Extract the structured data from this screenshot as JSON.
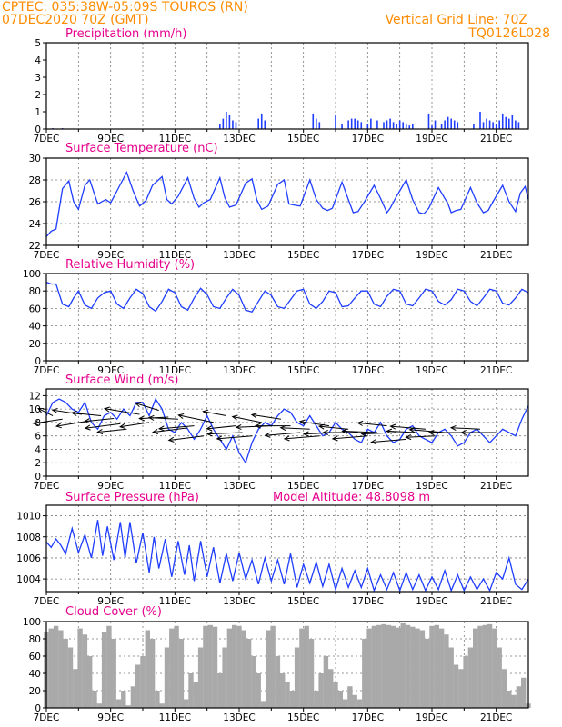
{
  "header": {
    "line1": "CPTEC:   035:38W-05:09S   TOUROS (RN)",
    "line2": "07DEC2020 70Z (GMT)",
    "grid_line": "Vertical Grid Line: 70Z",
    "code": "TQ0126L028"
  },
  "model_altitude": "Model Altitude: 48.8098 m",
  "colors": {
    "header": "#ff8c00",
    "title": "#e6008c",
    "series": "#1f3dff",
    "cloud": "#a9a9a9",
    "vectors": "#000000"
  },
  "chart_data": [
    {
      "id": "precip",
      "type": "bar",
      "title": "Precipitation (mm/h)",
      "ylim": [
        0,
        5
      ],
      "yticks": [
        0,
        1,
        2,
        3,
        4,
        5
      ],
      "xlim": [
        0,
        15
      ],
      "x_tick_labels": [
        "7DEC",
        "9DEC",
        "11DEC",
        "13DEC",
        "15DEC",
        "17DEC",
        "19DEC",
        "21DEC"
      ],
      "grid": "vertical dotted",
      "x": [
        0.2,
        0.5,
        5.4,
        5.5,
        5.6,
        5.7,
        5.8,
        5.9,
        6.6,
        6.7,
        6.8,
        8.3,
        8.4,
        8.5,
        9.0,
        9.2,
        9.4,
        9.5,
        9.6,
        9.7,
        9.8,
        10.0,
        10.1,
        10.3,
        10.5,
        10.6,
        10.7,
        10.8,
        10.9,
        11.0,
        11.1,
        11.2,
        11.3,
        11.4,
        11.9,
        12.0,
        12.1,
        12.3,
        12.4,
        12.5,
        12.6,
        12.7,
        12.8,
        13.3,
        13.5,
        13.6,
        13.7,
        13.8,
        13.9,
        14.0,
        14.1,
        14.2,
        14.3,
        14.4,
        14.5,
        14.6,
        14.7
      ],
      "values": [
        0.05,
        0.05,
        0.3,
        0.6,
        1.0,
        0.8,
        0.5,
        0.4,
        0.6,
        0.9,
        0.5,
        0.9,
        0.6,
        0.4,
        0.8,
        0.3,
        0.5,
        0.6,
        0.6,
        0.5,
        0.4,
        0.3,
        0.6,
        0.5,
        0.4,
        0.5,
        0.6,
        0.4,
        0.3,
        0.5,
        0.4,
        0.3,
        0.2,
        0.3,
        0.9,
        0.2,
        0.5,
        0.3,
        0.5,
        0.7,
        0.6,
        0.5,
        0.4,
        0.3,
        1.0,
        0.4,
        0.6,
        0.5,
        0.4,
        0.3,
        0.5,
        0.9,
        0.7,
        0.6,
        0.8,
        0.5,
        0.4
      ]
    },
    {
      "id": "temperature",
      "type": "line",
      "title": "Surface Temperature (nC)",
      "ylim": [
        22,
        30
      ],
      "yticks": [
        22,
        24,
        26,
        28,
        30
      ],
      "xlim": [
        0,
        15
      ],
      "x_tick_labels": [
        "7DEC",
        "9DEC",
        "11DEC",
        "13DEC",
        "15DEC",
        "17DEC",
        "19DEC",
        "21DEC"
      ],
      "grid": "dotted",
      "x": [
        0,
        0.15,
        0.3,
        0.5,
        0.7,
        0.85,
        1.0,
        1.2,
        1.35,
        1.6,
        1.85,
        2.0,
        2.2,
        2.5,
        2.7,
        2.9,
        3.1,
        3.3,
        3.6,
        3.75,
        3.9,
        4.1,
        4.4,
        4.6,
        4.75,
        4.9,
        5.1,
        5.4,
        5.55,
        5.7,
        5.9,
        6.2,
        6.4,
        6.55,
        6.7,
        6.9,
        7.2,
        7.4,
        7.55,
        7.7,
        7.9,
        8.2,
        8.4,
        8.6,
        8.75,
        8.9,
        9.2,
        9.4,
        9.55,
        9.7,
        9.9,
        10.2,
        10.4,
        10.6,
        10.7,
        10.9,
        11.2,
        11.4,
        11.6,
        11.75,
        11.9,
        12.2,
        12.5,
        12.6,
        12.75,
        12.9,
        13.2,
        13.4,
        13.6,
        13.75,
        13.9,
        14.2,
        14.4,
        14.6,
        14.75,
        14.9,
        15.0
      ],
      "values": [
        22.8,
        23.3,
        23.5,
        27.2,
        27.9,
        26.0,
        25.3,
        27.5,
        28.0,
        25.8,
        26.2,
        25.9,
        27.0,
        28.7,
        27.0,
        25.6,
        26.1,
        27.5,
        28.3,
        26.2,
        25.8,
        26.5,
        28.2,
        26.3,
        25.5,
        25.9,
        26.2,
        28.2,
        26.4,
        25.5,
        25.7,
        27.7,
        28.1,
        26.2,
        25.3,
        25.6,
        27.6,
        28.0,
        25.8,
        25.7,
        25.6,
        28.0,
        26.2,
        25.4,
        25.2,
        25.4,
        27.8,
        26.2,
        25.0,
        25.1,
        26.0,
        27.5,
        26.3,
        25.0,
        25.4,
        26.5,
        28.0,
        26.2,
        25.0,
        24.9,
        25.4,
        27.3,
        25.8,
        25.0,
        25.2,
        25.3,
        27.3,
        25.9,
        25.0,
        25.2,
        26.0,
        27.5,
        26.0,
        25.1,
        26.8,
        27.4,
        26.2
      ]
    },
    {
      "id": "humidity",
      "type": "line",
      "title": "Relative Humidity (%)",
      "ylim": [
        0,
        100
      ],
      "yticks": [
        0,
        20,
        40,
        60,
        80,
        100
      ],
      "xlim": [
        0,
        15
      ],
      "x_tick_labels": [
        "7DEC",
        "9DEC",
        "11DEC",
        "13DEC",
        "15DEC",
        "17DEC",
        "19DEC",
        "21DEC"
      ],
      "grid": "dotted",
      "x": [
        0,
        0.15,
        0.3,
        0.5,
        0.7,
        0.85,
        1.0,
        1.2,
        1.4,
        1.6,
        1.8,
        2.0,
        2.2,
        2.4,
        2.6,
        2.8,
        3.0,
        3.2,
        3.4,
        3.6,
        3.8,
        4.0,
        4.2,
        4.4,
        4.6,
        4.8,
        5.0,
        5.2,
        5.4,
        5.6,
        5.8,
        6.0,
        6.2,
        6.4,
        6.6,
        6.8,
        7.0,
        7.2,
        7.4,
        7.6,
        7.8,
        8.0,
        8.2,
        8.4,
        8.6,
        8.8,
        9.0,
        9.2,
        9.4,
        9.6,
        9.8,
        10.0,
        10.2,
        10.4,
        10.6,
        10.8,
        11.0,
        11.2,
        11.4,
        11.6,
        11.8,
        12.0,
        12.2,
        12.4,
        12.6,
        12.8,
        13.0,
        13.2,
        13.4,
        13.6,
        13.8,
        14.0,
        14.2,
        14.4,
        14.6,
        14.8,
        15.0
      ],
      "values": [
        90,
        88,
        88,
        65,
        62,
        72,
        80,
        64,
        60,
        72,
        78,
        80,
        65,
        60,
        72,
        82,
        77,
        62,
        57,
        68,
        82,
        78,
        62,
        58,
        72,
        83,
        76,
        62,
        60,
        72,
        82,
        75,
        58,
        56,
        68,
        80,
        75,
        62,
        60,
        70,
        80,
        82,
        65,
        60,
        68,
        80,
        78,
        62,
        63,
        72,
        80,
        80,
        65,
        62,
        74,
        82,
        80,
        65,
        63,
        72,
        82,
        80,
        68,
        64,
        70,
        82,
        80,
        68,
        63,
        72,
        82,
        80,
        66,
        64,
        72,
        82,
        78
      ]
    },
    {
      "id": "wind",
      "type": "line",
      "title": "Surface Wind (m/s)",
      "ylim": [
        0,
        13
      ],
      "yticks": [
        0,
        2,
        4,
        6,
        8,
        10,
        12
      ],
      "xlim": [
        0,
        15
      ],
      "x_tick_labels": [
        "7DEC",
        "9DEC",
        "11DEC",
        "13DEC",
        "15DEC",
        "17DEC",
        "19DEC",
        "21DEC"
      ],
      "grid": "dotted",
      "x": [
        0,
        0.2,
        0.4,
        0.6,
        0.8,
        1.0,
        1.2,
        1.4,
        1.6,
        1.8,
        2.0,
        2.2,
        2.4,
        2.6,
        2.8,
        3.0,
        3.2,
        3.4,
        3.6,
        3.8,
        4.0,
        4.2,
        4.4,
        4.6,
        4.8,
        5.0,
        5.2,
        5.4,
        5.6,
        5.8,
        6.0,
        6.2,
        6.4,
        6.6,
        6.8,
        7.0,
        7.2,
        7.4,
        7.6,
        7.8,
        8.0,
        8.2,
        8.4,
        8.6,
        8.8,
        9.0,
        9.2,
        9.4,
        9.6,
        9.8,
        10.0,
        10.2,
        10.4,
        10.6,
        10.8,
        11.0,
        11.2,
        11.4,
        11.6,
        11.8,
        12.0,
        12.2,
        12.4,
        12.6,
        12.8,
        13.0,
        13.2,
        13.4,
        13.6,
        13.8,
        14.0,
        14.2,
        14.4,
        14.6,
        14.8,
        15.0
      ],
      "values": [
        9.0,
        11.0,
        11.5,
        11.0,
        10.0,
        9.5,
        11.0,
        8.0,
        7.0,
        9.0,
        9.5,
        8.5,
        10.0,
        9.0,
        11.0,
        11.0,
        9.0,
        11.5,
        10.0,
        7.0,
        6.5,
        8.0,
        7.0,
        5.5,
        7.0,
        9.0,
        7.0,
        5.5,
        4.0,
        6.0,
        3.5,
        2.0,
        5.0,
        7.0,
        8.0,
        7.5,
        9.0,
        10.0,
        9.5,
        8.0,
        7.5,
        9.0,
        7.5,
        6.0,
        6.5,
        8.0,
        7.0,
        6.5,
        5.5,
        5.0,
        7.0,
        6.5,
        8.0,
        6.0,
        5.0,
        5.5,
        7.0,
        7.5,
        6.0,
        5.5,
        5.0,
        6.5,
        7.0,
        6.0,
        4.5,
        5.0,
        6.5,
        7.0,
        6.0,
        5.0,
        6.0,
        7.0,
        6.5,
        6.0,
        8.5,
        10.5
      ],
      "vectors": {
        "y": [
          9.0,
          8.5,
          9.2,
          8.3,
          9.0,
          8.6,
          7.8,
          7.0,
          9.2,
          8.0,
          9.8,
          8.8,
          8.5,
          7.2,
          7.5,
          6.0,
          8.0,
          9.0,
          7.5,
          6.5,
          6.0,
          8.0,
          7.5,
          8.5,
          7.5,
          6.5,
          7.0,
          6.0,
          7.5,
          6.5,
          7.0,
          6.5,
          6.0,
          6.5,
          7.5,
          6.5,
          5.5,
          6.5,
          7.0,
          6.0,
          6.5,
          6.5,
          7.0,
          6.5
        ],
        "x": [
          0.2,
          0.5,
          1.1,
          1.4,
          1.7,
          2.1,
          2.3,
          2.5,
          2.9,
          3.2,
          3.5,
          3.8,
          4.1,
          4.4,
          4.6,
          4.9,
          5.2,
          5.6,
          5.9,
          6.1,
          6.4,
          6.7,
          7.0,
          7.3,
          7.6,
          7.9,
          8.2,
          8.5,
          8.8,
          9.1,
          9.4,
          9.7,
          10.0,
          10.3,
          10.6,
          10.9,
          11.2,
          11.5,
          11.8,
          12.1,
          12.4,
          13.0,
          13.5,
          14.0
        ],
        "u": [
          0.5,
          1.0,
          1.0,
          1.2,
          1.0,
          1.0,
          1.2,
          1.0,
          1.2,
          1.0,
          0.8,
          1.0,
          1.0,
          1.2,
          1.2,
          1.2,
          1.2,
          0.8,
          1.0,
          1.2,
          1.2,
          1.0,
          1.2,
          1.0,
          1.2,
          1.2,
          1.0,
          1.2,
          1.0,
          1.2,
          1.0,
          1.2,
          1.2,
          1.2,
          1.0,
          1.2,
          1.2,
          1.0,
          1.2,
          1.0,
          1.2,
          1.2,
          1.0,
          1.2
        ],
        "v": [
          0.5,
          -0.3,
          0.3,
          -0.4,
          0.2,
          -0.2,
          -0.3,
          -0.2,
          0.4,
          -0.3,
          0.5,
          -0.1,
          0.1,
          -0.3,
          -0.2,
          -0.3,
          0.5,
          0.3,
          -0.2,
          -0.1,
          -0.2,
          0.4,
          -0.1,
          0.3,
          0.0,
          -0.2,
          0.1,
          -0.2,
          0.3,
          -0.1,
          0.2,
          0.0,
          -0.2,
          0.1,
          0.2,
          -0.1,
          -0.2,
          0.1,
          0.2,
          -0.1,
          0.2,
          0.0,
          0.1,
          0.0
        ]
      }
    },
    {
      "id": "pressure",
      "type": "line",
      "title": "Surface Pressure (hPa)",
      "ylim": [
        1002.8,
        1011
      ],
      "yticks": [
        1004,
        1006,
        1008,
        1010
      ],
      "xlim": [
        0,
        15
      ],
      "x_tick_labels": [
        "7DEC",
        "9DEC",
        "11DEC",
        "13DEC",
        "15DEC",
        "17DEC",
        "19DEC",
        "21DEC"
      ],
      "grid": "dotted",
      "x": [
        0,
        0.15,
        0.3,
        0.45,
        0.6,
        0.8,
        1.0,
        1.2,
        1.4,
        1.6,
        1.75,
        1.9,
        2.1,
        2.3,
        2.45,
        2.6,
        2.8,
        3.0,
        3.2,
        3.35,
        3.5,
        3.7,
        3.9,
        4.1,
        4.3,
        4.45,
        4.6,
        4.8,
        5.0,
        5.2,
        5.4,
        5.6,
        5.8,
        6.0,
        6.2,
        6.4,
        6.6,
        6.8,
        7.0,
        7.2,
        7.4,
        7.6,
        7.8,
        8.0,
        8.2,
        8.4,
        8.6,
        8.8,
        9.0,
        9.2,
        9.4,
        9.6,
        9.8,
        10.0,
        10.2,
        10.4,
        10.6,
        10.8,
        11.0,
        11.2,
        11.4,
        11.6,
        11.8,
        12.0,
        12.2,
        12.4,
        12.6,
        12.8,
        13.0,
        13.2,
        13.4,
        13.6,
        13.8,
        14.0,
        14.2,
        14.4,
        14.6,
        14.8,
        15.0
      ],
      "values": [
        1007.5,
        1007.0,
        1007.8,
        1007.2,
        1006.4,
        1008.8,
        1006.5,
        1008.2,
        1006.0,
        1009.6,
        1006.2,
        1009.0,
        1005.8,
        1009.4,
        1006.0,
        1009.4,
        1005.5,
        1008.4,
        1004.6,
        1008.0,
        1005.0,
        1007.8,
        1004.2,
        1007.6,
        1004.4,
        1007.2,
        1003.8,
        1007.6,
        1004.2,
        1007.0,
        1003.6,
        1006.4,
        1003.8,
        1006.5,
        1004.0,
        1005.8,
        1003.5,
        1006.0,
        1003.8,
        1005.8,
        1003.5,
        1006.4,
        1003.2,
        1005.4,
        1003.6,
        1005.6,
        1003.3,
        1005.4,
        1003.0,
        1005.0,
        1003.2,
        1004.8,
        1003.2,
        1005.0,
        1002.9,
        1004.4,
        1003.0,
        1004.6,
        1002.9,
        1004.6,
        1003.0,
        1004.4,
        1002.9,
        1004.2,
        1003.0,
        1004.8,
        1002.9,
        1004.4,
        1002.9,
        1004.2,
        1003.0,
        1004.0,
        1002.9,
        1004.6,
        1004.0,
        1006.0,
        1003.5,
        1003.0,
        1004.0
      ]
    },
    {
      "id": "cloud",
      "type": "area",
      "title": "Cloud Cover (%)",
      "ylim": [
        0,
        100
      ],
      "yticks": [
        0,
        20,
        40,
        60,
        80,
        100
      ],
      "xlim": [
        0,
        15
      ],
      "x_tick_labels": [
        "7DEC",
        "9DEC",
        "11DEC",
        "13DEC",
        "15DEC",
        "17DEC",
        "19DEC",
        "21DEC"
      ],
      "grid": "dotted",
      "x": [
        0,
        0.15,
        0.3,
        0.45,
        0.6,
        0.75,
        0.9,
        1.05,
        1.2,
        1.35,
        1.5,
        1.65,
        1.8,
        1.95,
        2.1,
        2.25,
        2.4,
        2.55,
        2.7,
        2.85,
        3.0,
        3.15,
        3.3,
        3.45,
        3.6,
        3.75,
        3.9,
        4.05,
        4.2,
        4.35,
        4.5,
        4.65,
        4.8,
        4.95,
        5.1,
        5.25,
        5.4,
        5.55,
        5.7,
        5.85,
        6.0,
        6.15,
        6.3,
        6.45,
        6.6,
        6.75,
        6.9,
        7.05,
        7.2,
        7.35,
        7.5,
        7.65,
        7.8,
        7.95,
        8.1,
        8.25,
        8.4,
        8.55,
        8.7,
        8.85,
        9.0,
        9.15,
        9.3,
        9.45,
        9.6,
        9.75,
        9.9,
        10.05,
        10.2,
        10.35,
        10.5,
        10.65,
        10.8,
        10.95,
        11.1,
        11.25,
        11.4,
        11.55,
        11.7,
        11.85,
        12.0,
        12.15,
        12.3,
        12.45,
        12.6,
        12.75,
        12.9,
        13.05,
        13.2,
        13.35,
        13.5,
        13.65,
        13.8,
        13.95,
        14.1,
        14.25,
        14.4,
        14.55,
        14.7,
        14.85,
        15.0
      ],
      "values": [
        88,
        92,
        95,
        90,
        80,
        70,
        45,
        92,
        85,
        60,
        20,
        5,
        88,
        95,
        80,
        10,
        20,
        3,
        25,
        50,
        60,
        90,
        80,
        20,
        5,
        70,
        92,
        95,
        80,
        10,
        40,
        30,
        70,
        95,
        96,
        94,
        40,
        70,
        92,
        96,
        95,
        90,
        80,
        60,
        40,
        8,
        90,
        95,
        60,
        40,
        30,
        20,
        70,
        92,
        95,
        80,
        20,
        40,
        60,
        45,
        30,
        20,
        10,
        25,
        15,
        10,
        80,
        92,
        95,
        96,
        97,
        96,
        95,
        93,
        98,
        96,
        94,
        92,
        90,
        80,
        95,
        96,
        92,
        85,
        70,
        50,
        45,
        60,
        70,
        92,
        95,
        96,
        97,
        92,
        70,
        45,
        20,
        15,
        25,
        35,
        5
      ]
    }
  ]
}
